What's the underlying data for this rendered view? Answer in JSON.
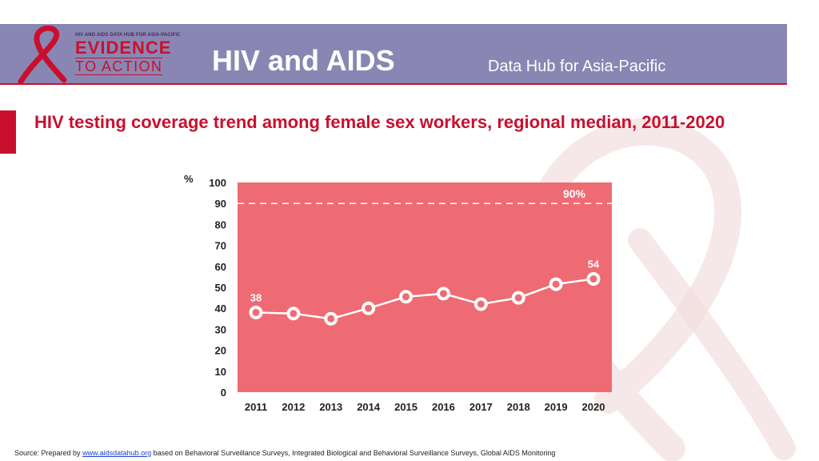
{
  "header": {
    "logo": {
      "top_text": "HIV AND AIDS DATA HUB FOR ASIA-PACIFIC",
      "evidence": "EVIDENCE",
      "to_action": "TO ACTION"
    },
    "title": "HIV and AIDS",
    "subtitle": "Data Hub for Asia-Pacific"
  },
  "colors": {
    "header_bg": "#8a86b3",
    "accent_red": "#c8102e",
    "plot_bg": "#ee6b73",
    "line": "#ffffff"
  },
  "chart_data": {
    "type": "line",
    "title": "HIV testing coverage trend among female sex workers, regional median, 2011-2020",
    "ylabel": "%",
    "ylim": [
      0,
      100
    ],
    "yticks": [
      0,
      10,
      20,
      30,
      40,
      50,
      60,
      70,
      80,
      90,
      100
    ],
    "categories": [
      "2011",
      "2012",
      "2013",
      "2014",
      "2015",
      "2016",
      "2017",
      "2018",
      "2019",
      "2020"
    ],
    "series": [
      {
        "values": [
          38,
          37.5,
          35,
          40,
          45.5,
          47,
          42,
          45,
          51.5,
          54
        ]
      }
    ],
    "data_labels": [
      {
        "index": 0,
        "text": "38"
      },
      {
        "index": 9,
        "text": "54"
      }
    ],
    "reference_line": {
      "value": 90,
      "label": "90%",
      "style": "dashed"
    },
    "grid": false,
    "legend": "none"
  },
  "source": {
    "prefix": "Source: Prepared by ",
    "link": "www.aidsdatahub.org",
    "suffix": " based on Behavioral Surveillance Surveys, Integrated Biological and Behavioral Surveillance Surveys, Global AIDS Monitoring"
  }
}
